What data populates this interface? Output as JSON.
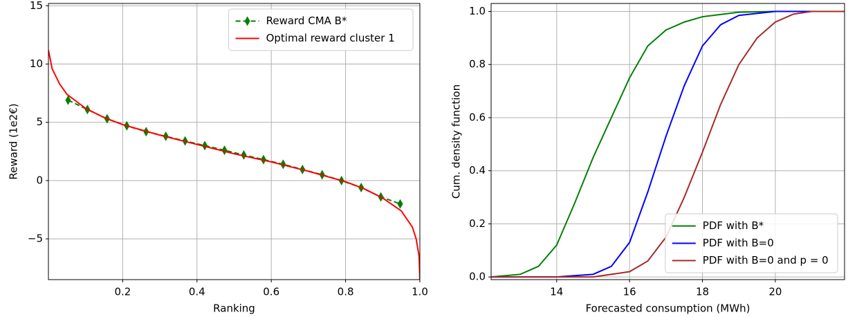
{
  "chart_data": [
    {
      "type": "line",
      "xlabel": "Ranking",
      "ylabel": "Reward (1e2€)",
      "xlim": [
        0,
        1
      ],
      "ylim": [
        -8.5,
        15.2
      ],
      "xticks": [
        0.2,
        0.4,
        0.6,
        0.8,
        {
          "value": 1,
          "label": "1.0"
        }
      ],
      "yticks": [
        {
          "value": -5,
          "label": "−5"
        },
        0,
        5,
        10,
        15
      ],
      "grid": true,
      "legend": "upper right",
      "series": [
        {
          "name": "Reward CMA B*",
          "color": "#008000",
          "linestyle": "dashed",
          "marker": "diamond",
          "x": [
            0.053,
            0.105,
            0.158,
            0.211,
            0.263,
            0.316,
            0.368,
            0.421,
            0.474,
            0.526,
            0.579,
            0.632,
            0.684,
            0.737,
            0.789,
            0.842,
            0.895,
            0.947
          ],
          "values": [
            6.9,
            6.1,
            5.3,
            4.7,
            4.2,
            3.8,
            3.4,
            3.0,
            2.6,
            2.2,
            1.8,
            1.4,
            0.95,
            0.5,
            0.0,
            -0.6,
            -1.4,
            -2.0
          ]
        },
        {
          "name": "Optimal reward cluster 1",
          "color": "#ff0000",
          "linestyle": "solid",
          "x": [
            0,
            0.01,
            0.03,
            0.05,
            0.1,
            0.15,
            0.2,
            0.3,
            0.4,
            0.5,
            0.6,
            0.7,
            0.8,
            0.85,
            0.9,
            0.95,
            0.98,
            0.99,
            0.998,
            1.0
          ],
          "values": [
            11.2,
            9.6,
            8.3,
            7.4,
            6.2,
            5.4,
            4.8,
            3.9,
            3.1,
            2.3,
            1.6,
            0.8,
            -0.1,
            -0.7,
            -1.5,
            -2.6,
            -4.0,
            -5.0,
            -6.5,
            -8.5
          ]
        }
      ]
    },
    {
      "type": "line",
      "xlabel": "Forecasted consumption (MWh)",
      "ylabel": "Cum. density function",
      "xlim": [
        12.2,
        21.9
      ],
      "ylim": [
        -0.01,
        1.03
      ],
      "xticks": [
        14,
        16,
        18,
        20
      ],
      "yticks": [
        {
          "value": 0,
          "label": "0.0"
        },
        0.2,
        0.4,
        0.6,
        0.8,
        {
          "value": 1,
          "label": "1.0"
        }
      ],
      "grid": true,
      "legend": "lower right",
      "series": [
        {
          "name": "PDF with B*",
          "color": "#008000",
          "linestyle": "solid",
          "x": [
            12.2,
            13,
            13.5,
            14,
            14.5,
            15,
            15.5,
            16,
            16.5,
            17,
            17.5,
            18,
            19,
            20,
            21.9
          ],
          "values": [
            0,
            0.01,
            0.04,
            0.12,
            0.28,
            0.45,
            0.6,
            0.75,
            0.87,
            0.93,
            0.96,
            0.98,
            0.997,
            1,
            1
          ]
        },
        {
          "name": "PDF with B=0",
          "color": "#0000ff",
          "linestyle": "solid",
          "x": [
            12.2,
            14,
            15,
            15.5,
            16,
            16.5,
            17,
            17.5,
            18,
            18.5,
            19,
            20,
            21.9
          ],
          "values": [
            0,
            0,
            0.01,
            0.04,
            0.13,
            0.32,
            0.53,
            0.72,
            0.87,
            0.95,
            0.985,
            1,
            1
          ]
        },
        {
          "name": "PDF with B=0 and p = 0",
          "color": "#a52a2a",
          "linestyle": "solid",
          "x": [
            12.2,
            15,
            16,
            16.5,
            17,
            17.5,
            18,
            18.5,
            19,
            19.5,
            20,
            20.5,
            21,
            21.9
          ],
          "values": [
            0,
            0,
            0.02,
            0.06,
            0.15,
            0.3,
            0.47,
            0.65,
            0.8,
            0.9,
            0.96,
            0.99,
            1,
            1
          ]
        }
      ]
    }
  ]
}
